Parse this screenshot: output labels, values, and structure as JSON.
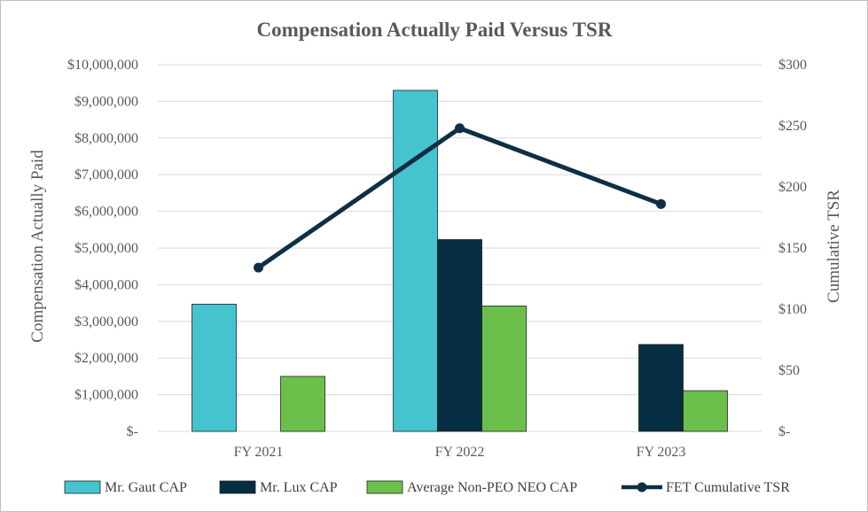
{
  "chart_data": {
    "type": "bar",
    "title": "Compensation Actually Paid Versus TSR",
    "categories": [
      "FY 2021",
      "FY 2022",
      "FY 2023"
    ],
    "ylabel": "Compensation Actually Paid",
    "y2label": "Cumulative TSR",
    "ylim": [
      0,
      10000000
    ],
    "y2lim": [
      0,
      300
    ],
    "y_ticks": [
      "$-",
      "$1,000,000",
      "$2,000,000",
      "$3,000,000",
      "$4,000,000",
      "$5,000,000",
      "$6,000,000",
      "$7,000,000",
      "$8,000,000",
      "$9,000,000",
      "$10,000,000"
    ],
    "y2_ticks": [
      "$-",
      "$50",
      "$100",
      "$150",
      "$200",
      "$250",
      "$300"
    ],
    "grid": true,
    "legend_position": "bottom",
    "series": [
      {
        "name": "Mr. Gaut CAP",
        "kind": "bar",
        "color": "#45C3CF",
        "values": [
          3470000,
          9300000,
          null
        ]
      },
      {
        "name": "Mr. Lux CAP",
        "kind": "bar",
        "color": "#062E42",
        "values": [
          null,
          5230000,
          2370000
        ]
      },
      {
        "name": "Average Non-PEO NEO CAP",
        "kind": "bar",
        "color": "#6CBF4A",
        "values": [
          1500000,
          3420000,
          1110000
        ]
      },
      {
        "name": "FET Cumulative TSR",
        "kind": "line",
        "axis": "secondary",
        "color": "#0E2F44",
        "values": [
          134,
          248,
          186
        ]
      }
    ]
  }
}
